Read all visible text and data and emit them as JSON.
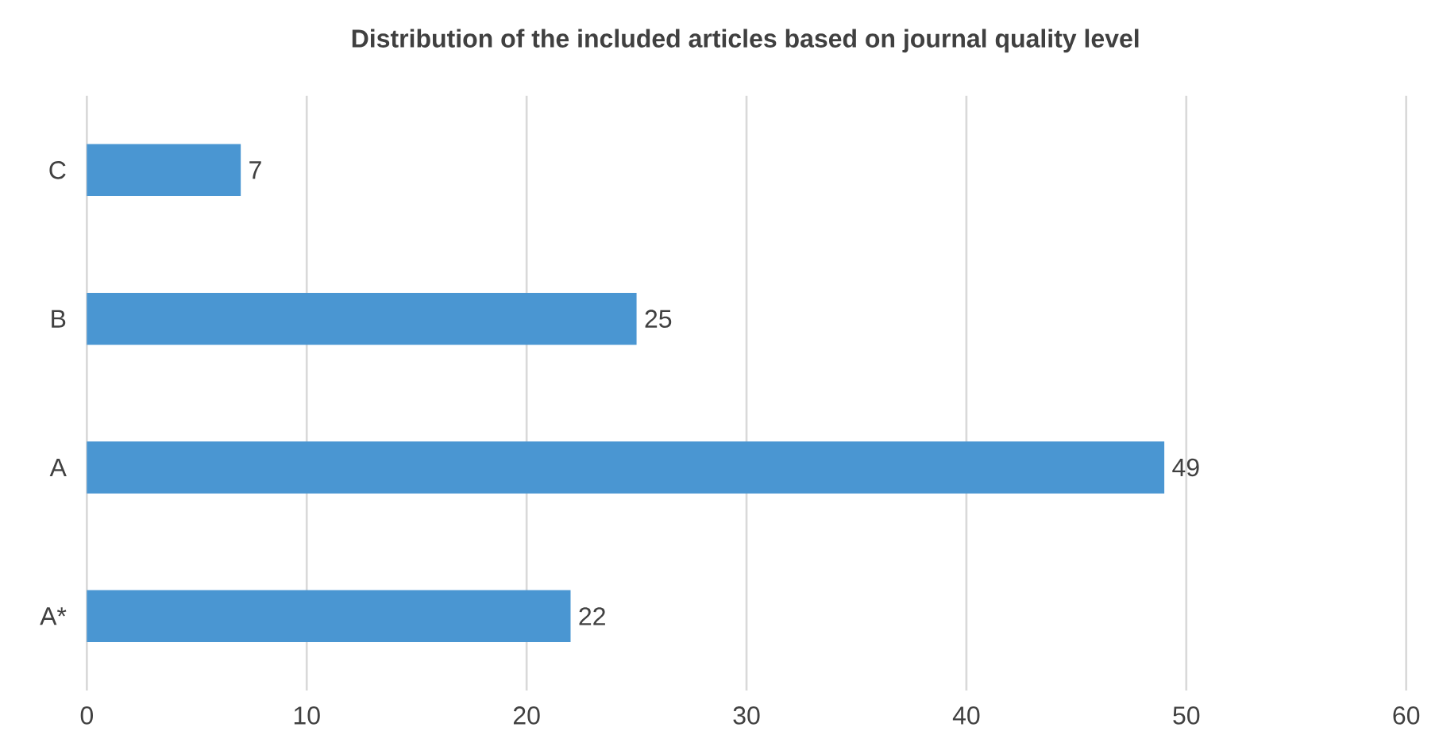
{
  "chart_data": {
    "type": "bar",
    "orientation": "horizontal",
    "title": "Distribution of the included articles based on journal quality level",
    "categories": [
      "C",
      "B",
      "A",
      "A*"
    ],
    "values": [
      7,
      25,
      49,
      22
    ],
    "color": "#4a96d2",
    "xlim": [
      0,
      60
    ],
    "xticks": [
      0,
      10,
      20,
      30,
      40,
      50,
      60
    ],
    "grid": "x",
    "data_labels": true
  }
}
